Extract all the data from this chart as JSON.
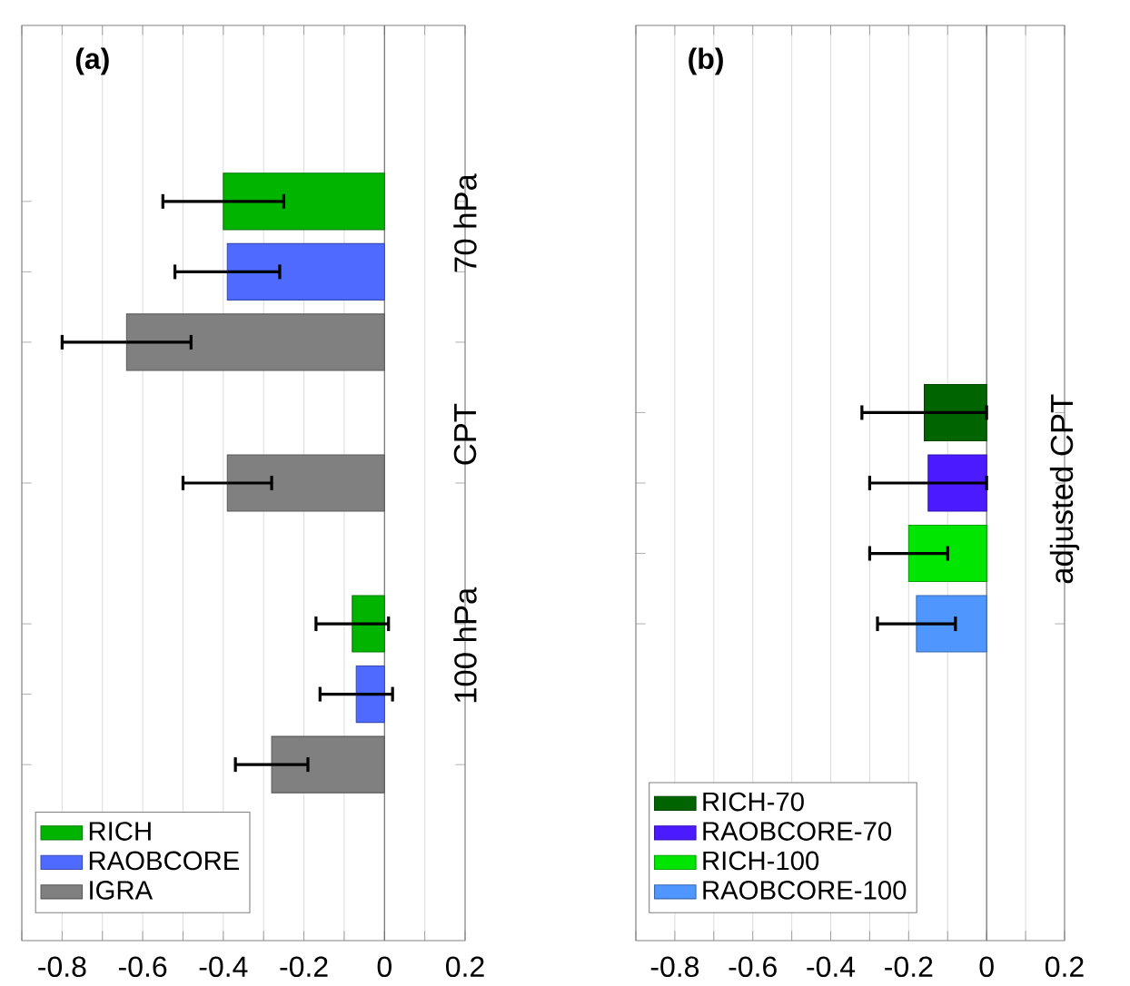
{
  "chart_data": [
    {
      "type": "bar",
      "orientation": "horizontal",
      "title": "(a)",
      "categories": [
        null,
        null,
        null,
        null,
        null,
        null,
        null,
        null,
        null,
        null,
        null,
        null,
        null
      ],
      "series": [
        {
          "name": "RICH",
          "color": "#00b400",
          "values": [
            null,
            null,
            -0.4,
            null,
            null,
            null,
            null,
            null,
            -0.08,
            null,
            null,
            null,
            null
          ],
          "errors": [
            null,
            null,
            0.15,
            null,
            null,
            null,
            null,
            null,
            0.09,
            null,
            null,
            null,
            null
          ]
        },
        {
          "name": "RAOBCORE",
          "color": "#4f6bff",
          "values": [
            null,
            null,
            null,
            -0.39,
            null,
            null,
            null,
            null,
            null,
            -0.07,
            null,
            null,
            null
          ],
          "errors": [
            null,
            null,
            null,
            0.13,
            null,
            null,
            null,
            null,
            null,
            0.09,
            null,
            null,
            null
          ]
        },
        {
          "name": "IGRA",
          "color": "#808080",
          "values": [
            null,
            null,
            null,
            null,
            -0.64,
            null,
            -0.39,
            null,
            null,
            null,
            -0.28,
            null,
            null
          ],
          "errors": [
            null,
            null,
            null,
            null,
            0.16,
            null,
            0.11,
            null,
            null,
            null,
            0.09,
            null,
            null
          ]
        }
      ],
      "annotations": [
        "70 hPa",
        "CPT",
        "100 hPa"
      ],
      "xlim": [
        -0.9,
        0.2
      ],
      "xticks": [
        {
          "value": -0.9,
          "label": null
        },
        -0.8,
        {
          "value": -0.7,
          "label": null
        },
        -0.6,
        {
          "value": -0.5,
          "label": null
        },
        -0.4,
        {
          "value": -0.3,
          "label": null
        },
        -0.2,
        {
          "value": -0.1,
          "label": null
        },
        0,
        {
          "value": 0.1,
          "label": null
        },
        0.2
      ],
      "grid": "x",
      "legend": "bottom left",
      "tick_labels": "x"
    },
    {
      "type": "bar",
      "orientation": "horizontal",
      "title": "(b)",
      "categories": [
        null,
        null,
        null,
        null,
        null,
        null,
        null,
        null,
        null,
        null,
        null,
        null,
        null
      ],
      "series": [
        {
          "name": "RICH-70",
          "color": "#006400",
          "values": [
            null,
            null,
            null,
            null,
            null,
            -0.16,
            null,
            null,
            null,
            null,
            null,
            null,
            null
          ],
          "errors": [
            null,
            null,
            null,
            null,
            null,
            0.16,
            null,
            null,
            null,
            null,
            null,
            null,
            null
          ]
        },
        {
          "name": "RAOBCORE-70",
          "color": "#4b1aff",
          "values": [
            null,
            null,
            null,
            null,
            null,
            null,
            -0.15,
            null,
            null,
            null,
            null,
            null,
            null
          ],
          "errors": [
            null,
            null,
            null,
            null,
            null,
            null,
            0.15,
            null,
            null,
            null,
            null,
            null,
            null
          ]
        },
        {
          "name": "RICH-100",
          "color": "#00e600",
          "values": [
            null,
            null,
            null,
            null,
            null,
            null,
            null,
            -0.2,
            null,
            null,
            null,
            null,
            null
          ],
          "errors": [
            null,
            null,
            null,
            null,
            null,
            null,
            null,
            0.1,
            null,
            null,
            null,
            null,
            null
          ]
        },
        {
          "name": "RAOBCORE-100",
          "color": "#4f97ff",
          "values": [
            null,
            null,
            null,
            null,
            null,
            null,
            null,
            null,
            -0.18,
            null,
            null,
            null,
            null
          ],
          "errors": [
            null,
            null,
            null,
            null,
            null,
            null,
            null,
            null,
            0.1,
            null,
            null,
            null,
            null
          ]
        }
      ],
      "annotations": [
        "adjusted CPT"
      ],
      "xlim": [
        -0.9,
        0.2
      ],
      "xticks": [
        {
          "value": -0.9,
          "label": null
        },
        -0.8,
        {
          "value": -0.7,
          "label": null
        },
        -0.6,
        {
          "value": -0.5,
          "label": null
        },
        -0.4,
        {
          "value": -0.3,
          "label": null
        },
        -0.2,
        {
          "value": -0.1,
          "label": null
        },
        0,
        {
          "value": 0.1,
          "label": null
        },
        0.2
      ],
      "grid": "x",
      "legend": "bottom left",
      "tick_labels": "x"
    }
  ]
}
